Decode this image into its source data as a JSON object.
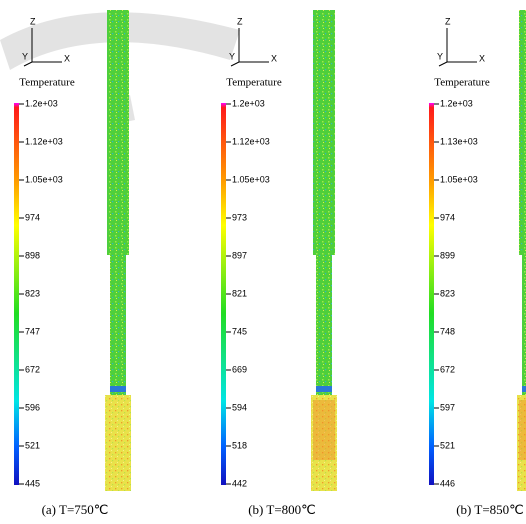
{
  "panels": [
    {
      "axes": {
        "z": "Z",
        "y": "Y",
        "x": "X"
      },
      "legend_title": "Temperature",
      "ticks": [
        "1.2e+03",
        "1.12e+03",
        "1.05e+03",
        "974",
        "898",
        "823",
        "747",
        "672",
        "596",
        "521",
        "445"
      ],
      "caption": "(a) T=750℃"
    },
    {
      "axes": {
        "z": "Z",
        "y": "Y",
        "x": "X"
      },
      "legend_title": "Temperature",
      "ticks": [
        "1.2e+03",
        "1.12e+03",
        "1.05e+03",
        "973",
        "897",
        "821",
        "745",
        "669",
        "594",
        "518",
        "442"
      ],
      "caption": "(b) T=800℃"
    },
    {
      "axes": {
        "z": "Z",
        "y": "Y",
        "x": "X"
      },
      "legend_title": "Temperature",
      "ticks": [
        "1.2e+03",
        "1.13e+03",
        "1.05e+03",
        "974",
        "899",
        "823",
        "748",
        "672",
        "597",
        "521",
        "446"
      ],
      "caption": "(b) T=850℃"
    }
  ]
}
